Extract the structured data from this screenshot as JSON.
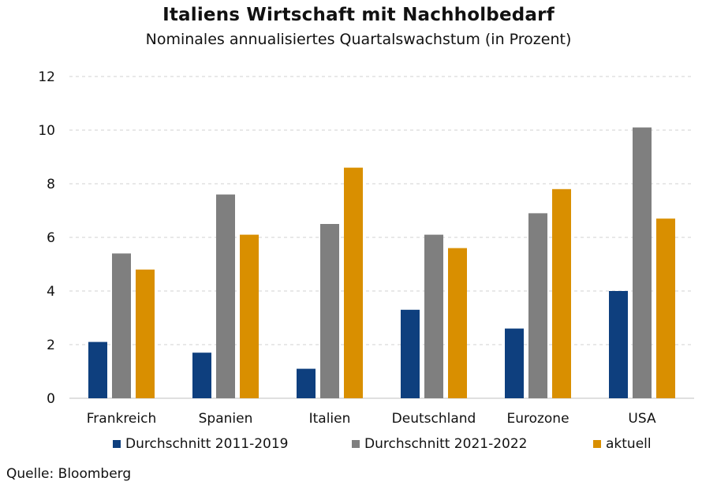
{
  "title": "Italiens Wirtschaft mit Nachholbedarf",
  "subtitle": "Nominales annualisiertes Quartalswachstum (in Prozent)",
  "source": "Quelle: Bloomberg",
  "colors": {
    "series1": "#0e3f7e",
    "series2": "#7f7f7f",
    "series3": "#d98f00",
    "grid": "#d0d0d0"
  },
  "chart_data": {
    "type": "bar",
    "title": "Italiens Wirtschaft mit Nachholbedarf",
    "subtitle": "Nominales annualisiertes Quartalswachstum (in Prozent)",
    "categories": [
      "Frankreich",
      "Spanien",
      "Italien",
      "Deutschland",
      "Eurozone",
      "USA"
    ],
    "series": [
      {
        "name": "Durchschnitt 2011-2019",
        "values": [
          2.1,
          1.7,
          1.1,
          3.3,
          2.6,
          4.0
        ]
      },
      {
        "name": "Durchschnitt 2021-2022",
        "values": [
          5.4,
          7.6,
          6.5,
          6.1,
          6.9,
          10.1
        ]
      },
      {
        "name": "aktuell",
        "values": [
          4.8,
          6.1,
          8.6,
          5.6,
          7.8,
          6.7
        ]
      }
    ],
    "ylim": [
      0,
      12
    ],
    "yticks": [
      0,
      2,
      4,
      6,
      8,
      10,
      12
    ],
    "grid": true,
    "legend_position": "bottom"
  }
}
